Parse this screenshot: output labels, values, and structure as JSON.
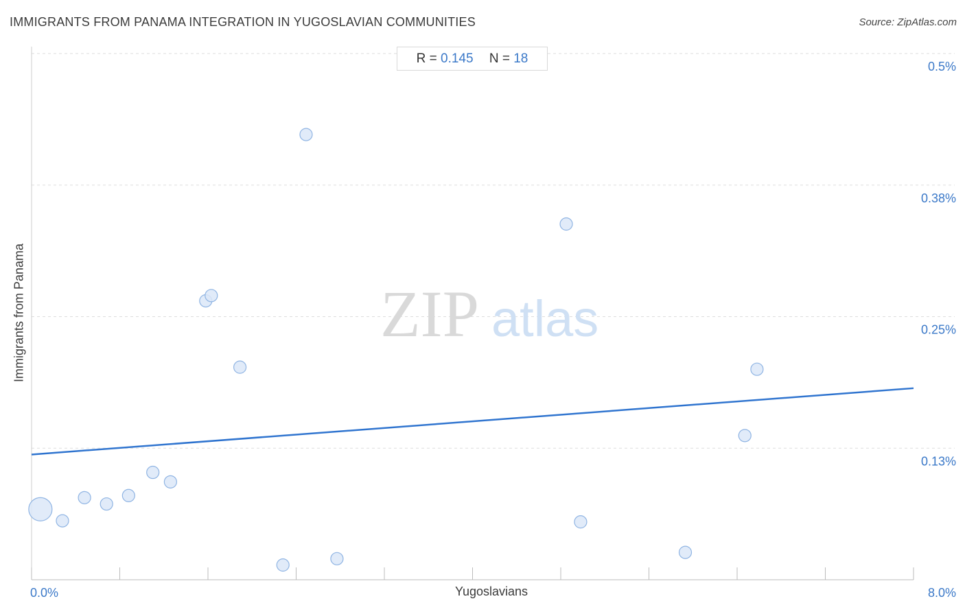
{
  "header": {
    "title": "IMMIGRANTS FROM PANAMA INTEGRATION IN YUGOSLAVIAN COMMUNITIES",
    "source": "Source: ZipAtlas.com"
  },
  "stats": {
    "r_label": "R =",
    "r_value": "0.145",
    "n_label": "N =",
    "n_value": "18"
  },
  "watermark": {
    "zip": "ZIP",
    "atlas": "atlas"
  },
  "colors": {
    "accent": "#3a78c8",
    "point_fill": "#dce8f8",
    "point_stroke": "#8fb4e3",
    "trend": "#2f74cf",
    "grid": "#dddddd"
  },
  "chart_data": {
    "type": "scatter",
    "title": "IMMIGRANTS FROM PANAMA INTEGRATION IN YUGOSLAVIAN COMMUNITIES",
    "xlabel": "Yugoslavians",
    "ylabel": "Immigrants from Panama",
    "xlim": [
      0,
      8
    ],
    "ylim": [
      0,
      0.5
    ],
    "x_tick_labels": [
      {
        "value": 0,
        "label": "0.0%"
      },
      {
        "value": 8,
        "label": "8.0%"
      }
    ],
    "y_tick_labels": [
      {
        "value": 0.125,
        "label": "0.13%"
      },
      {
        "value": 0.25,
        "label": "0.25%"
      },
      {
        "value": 0.375,
        "label": "0.38%"
      },
      {
        "value": 0.5,
        "label": "0.5%"
      }
    ],
    "grid": "horizontal dashed",
    "points": [
      {
        "x": 0.08,
        "y": 0.067,
        "size": "large"
      },
      {
        "x": 0.28,
        "y": 0.056
      },
      {
        "x": 0.48,
        "y": 0.078
      },
      {
        "x": 0.68,
        "y": 0.072
      },
      {
        "x": 0.88,
        "y": 0.08
      },
      {
        "x": 1.1,
        "y": 0.102
      },
      {
        "x": 1.26,
        "y": 0.093
      },
      {
        "x": 1.58,
        "y": 0.265
      },
      {
        "x": 1.63,
        "y": 0.27
      },
      {
        "x": 1.89,
        "y": 0.202
      },
      {
        "x": 2.28,
        "y": 0.014
      },
      {
        "x": 2.49,
        "y": 0.423
      },
      {
        "x": 2.77,
        "y": 0.02
      },
      {
        "x": 4.85,
        "y": 0.338
      },
      {
        "x": 4.98,
        "y": 0.055
      },
      {
        "x": 5.93,
        "y": 0.026
      },
      {
        "x": 6.47,
        "y": 0.137
      },
      {
        "x": 6.58,
        "y": 0.2
      }
    ],
    "trendline": {
      "x": [
        0,
        8
      ],
      "y": [
        0.119,
        0.182
      ]
    },
    "stats": {
      "r": 0.145,
      "n": 18
    }
  }
}
